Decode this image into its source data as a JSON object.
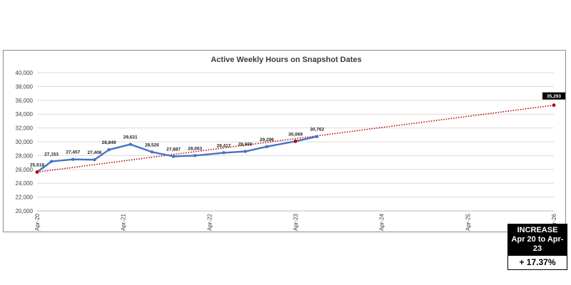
{
  "chart_data": {
    "type": "line",
    "title": "Active Weekly Hours on Snapshot Dates",
    "ylim": [
      20000,
      40000
    ],
    "yticks": [
      "20,000",
      "22,000",
      "24,000",
      "26,000",
      "28,000",
      "30,000",
      "32,000",
      "34,000",
      "36,000",
      "38,000",
      "40,000"
    ],
    "xticks": [
      "Apr-20",
      "Apr-21",
      "Apr-22",
      "Apr-23",
      "Apr-24",
      "Apr-25",
      "Apr-26"
    ],
    "grid": true,
    "series": [
      {
        "color": "#4472c4",
        "points": [
          {
            "x": "2020-04",
            "y": 25618,
            "label": "25,618"
          },
          {
            "x": "2020-06",
            "y": 27153,
            "label": "27,153"
          },
          {
            "x": "2020-09",
            "y": 27457,
            "label": "27,457"
          },
          {
            "x": "2020-12",
            "y": 27406,
            "label": "27,406"
          },
          {
            "x": "2021-02",
            "y": 28849,
            "label": "28,849"
          },
          {
            "x": "2021-05",
            "y": 29631,
            "label": "29,631"
          },
          {
            "x": "2021-08",
            "y": 28526,
            "label": "28,526"
          },
          {
            "x": "2021-11",
            "y": 27887,
            "label": "27,887"
          },
          {
            "x": "2022-02",
            "y": 28003,
            "label": "28,003"
          },
          {
            "x": "2022-06",
            "y": 28417,
            "label": "28,417"
          },
          {
            "x": "2022-09",
            "y": 28600,
            "label": "28,600"
          },
          {
            "x": "2022-12",
            "y": 29296,
            "label": "29,296"
          },
          {
            "x": "2023-04",
            "y": 30069,
            "label": "30,069"
          },
          {
            "x": "2023-07",
            "y": 30762,
            "label": "30,762"
          }
        ]
      },
      {
        "style": "dotted",
        "color": "#c00000",
        "points": [
          {
            "x": "2020-04",
            "y": 25618
          },
          {
            "x": "2023-04",
            "y": 30069
          },
          {
            "x": "2026-04",
            "y": 35293,
            "label": "35,293"
          }
        ]
      }
    ]
  },
  "increase_box": {
    "heading": "INCREASE Apr 20 to Apr-23",
    "value": "+ 17.37%"
  }
}
